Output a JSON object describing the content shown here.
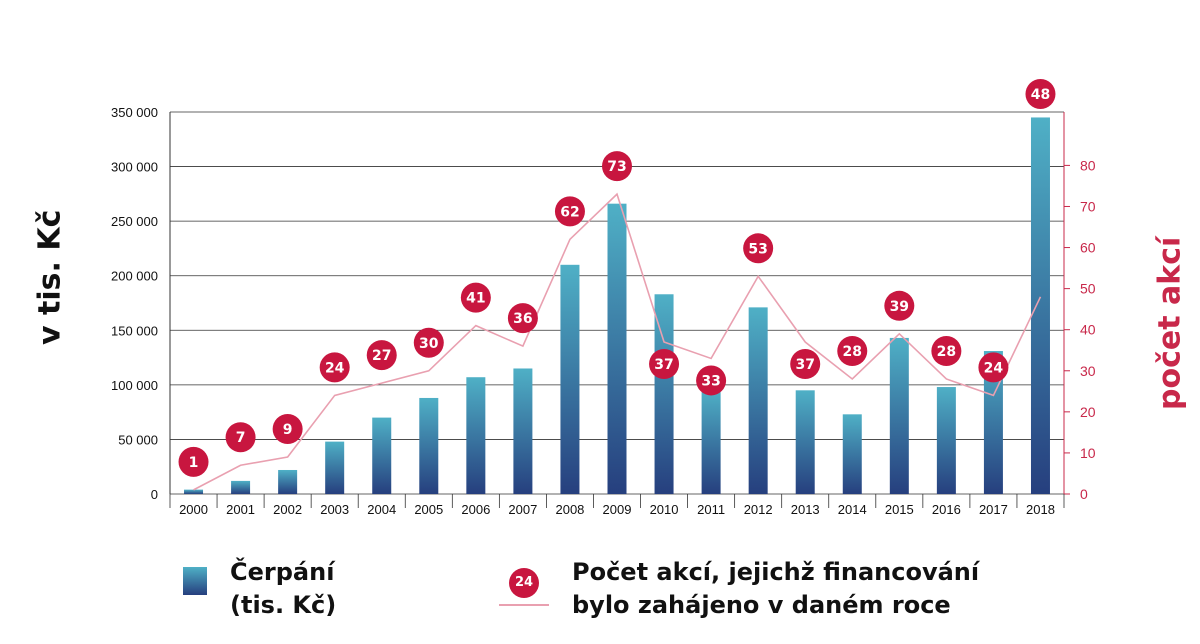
{
  "chart_data": {
    "type": "bar",
    "categories": [
      "2000",
      "2001",
      "2002",
      "2003",
      "2004",
      "2005",
      "2006",
      "2007",
      "2008",
      "2009",
      "2010",
      "2011",
      "2012",
      "2013",
      "2014",
      "2015",
      "2016",
      "2017",
      "2018"
    ],
    "series": [
      {
        "name": "Čerpání (tis. Kč)",
        "type": "bar",
        "axis": "left",
        "values": [
          4000,
          12000,
          22000,
          48000,
          70000,
          88000,
          107000,
          115000,
          210000,
          266000,
          183000,
          95000,
          171000,
          95000,
          73000,
          143000,
          98000,
          131000,
          345000
        ]
      },
      {
        "name": "Počet akcí, jejichž financování bylo zahájeno v daném roce",
        "type": "line",
        "axis": "right",
        "values": [
          1,
          7,
          9,
          24,
          27,
          30,
          41,
          36,
          62,
          73,
          37,
          33,
          53,
          37,
          28,
          39,
          28,
          24,
          48
        ]
      }
    ],
    "ylabel": "v tis. Kč",
    "y2label": "počet akcí",
    "ylim": [
      0,
      350000
    ],
    "y2lim": [
      0,
      93
    ],
    "yticks": [
      0,
      50000,
      100000,
      150000,
      200000,
      250000,
      300000,
      350000
    ],
    "ytick_labels": [
      "0",
      "50 000",
      "100 000",
      "150 000",
      "200 000",
      "250 000",
      "300 000",
      "350 000"
    ],
    "y2ticks": [
      0,
      10,
      20,
      30,
      40,
      50,
      60,
      70,
      80
    ],
    "grid": "horizontal",
    "legend_position": "bottom"
  },
  "legend": {
    "bar_line1": "Čerpání",
    "bar_line2": "(tis. Kč)",
    "line_line1": "Počet akcí, jejichž financování",
    "line_line2": "bylo zahájeno v daném roce",
    "line_badge": "24"
  },
  "colors": {
    "bar_top": "#4fb0c6",
    "bar_bottom": "#263f7e",
    "line": "#e9a0b0",
    "badge": "#c8163f",
    "right_axis": "#c8284a"
  }
}
